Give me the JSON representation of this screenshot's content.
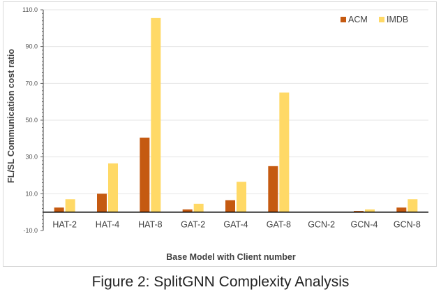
{
  "caption": "Figure 2: SplitGNN Complexity Analysis",
  "chart_data": {
    "type": "bar",
    "categories": [
      "HAT-2",
      "HAT-4",
      "HAT-8",
      "GAT-2",
      "GAT-4",
      "GAT-8",
      "GCN-2",
      "GCN-4",
      "GCN-8"
    ],
    "series": [
      {
        "name": "ACM",
        "color": "#c55a11",
        "values": [
          2.5,
          10.0,
          40.5,
          1.5,
          6.5,
          25.0,
          0.2,
          0.6,
          2.5
        ]
      },
      {
        "name": "IMDB",
        "color": "#ffd966",
        "values": [
          7.0,
          26.5,
          105.5,
          4.5,
          16.5,
          65.0,
          0.2,
          1.5,
          7.0
        ]
      }
    ],
    "title": "",
    "xlabel": "Base Model with Client number",
    "ylabel": "FL/SL Communication cost ratio",
    "ylim": [
      -10.0,
      110.0
    ],
    "yticks": [
      "-10.0",
      "10.0",
      "30.0",
      "50.0",
      "70.0",
      "90.0",
      "110.0"
    ],
    "grid": true,
    "legend_position": "top-right"
  }
}
